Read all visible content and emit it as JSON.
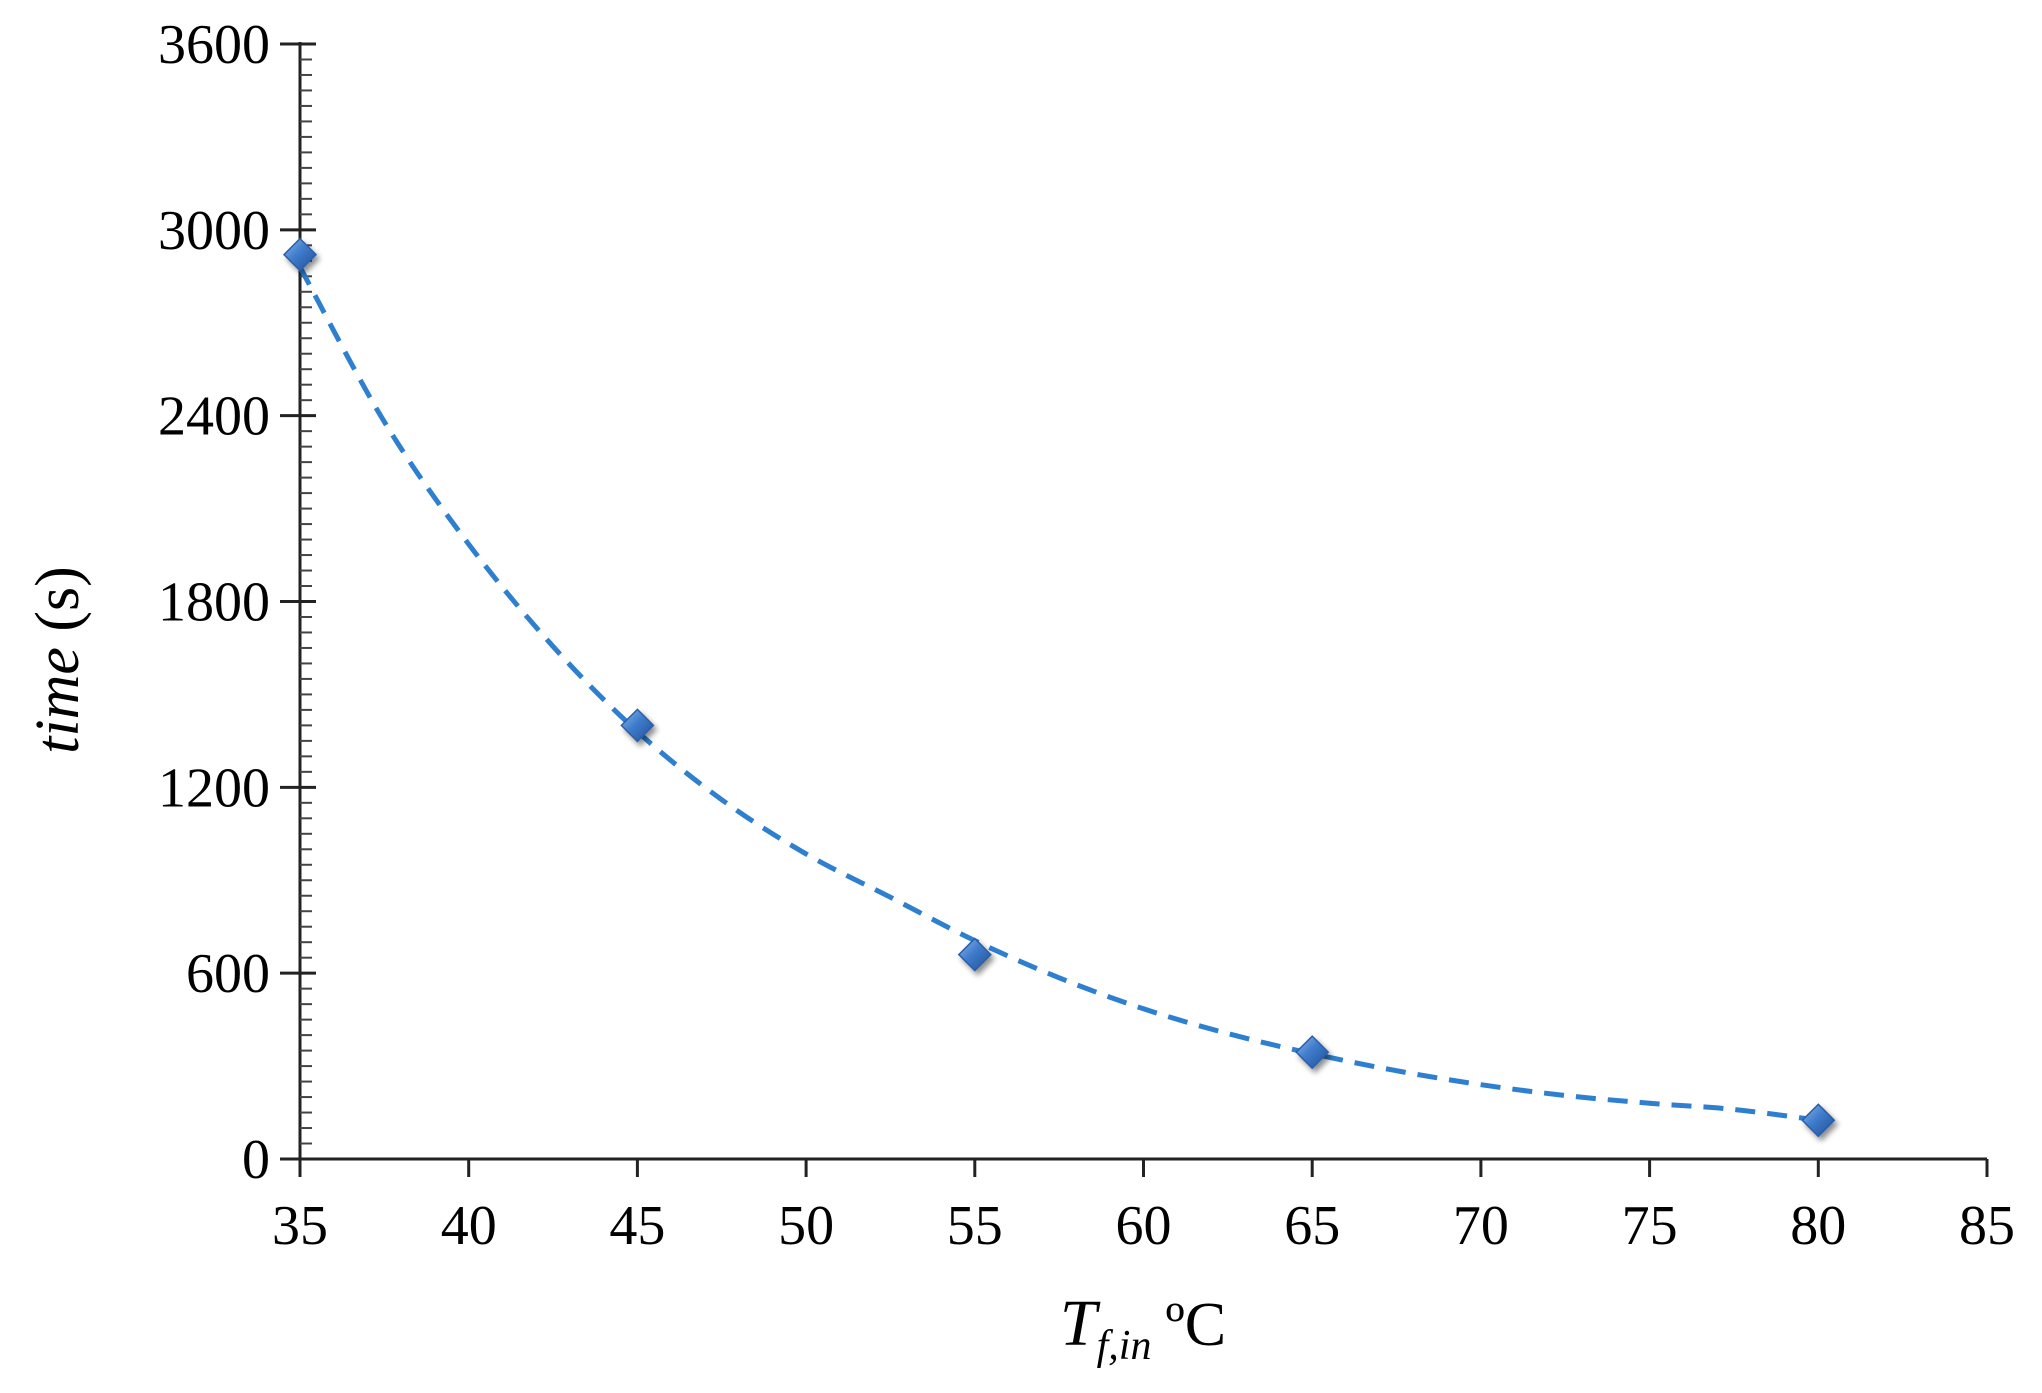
{
  "chart_data": {
    "type": "scatter",
    "title": "",
    "xlabel": {
      "main": "T",
      "subscript": "f,in",
      "unit": "ºC"
    },
    "ylabel": {
      "main": "time",
      "unit": "(s)"
    },
    "xlim": [
      35,
      85
    ],
    "ylim": [
      0,
      3600
    ],
    "xticks": [
      "35",
      "40",
      "45",
      "50",
      "55",
      "60",
      "65",
      "70",
      "75",
      "80",
      "85"
    ],
    "yticks": [
      "0",
      "600",
      "1200",
      "1800",
      "2400",
      "3000",
      "3600"
    ],
    "grid": false,
    "legend": "none",
    "series": [
      {
        "marker": "diamond",
        "color": "#3a78c9",
        "points": [
          {
            "x": 35,
            "y": 2920
          },
          {
            "x": 45,
            "y": 1400
          },
          {
            "x": 55,
            "y": 660
          },
          {
            "x": 65,
            "y": 345
          },
          {
            "x": 80,
            "y": 125
          }
        ]
      }
    ],
    "trendline": {
      "style": "dashed",
      "color": "#2f7fd0",
      "points": [
        {
          "x": 35,
          "y": 2880
        },
        {
          "x": 37.5,
          "y": 2380
        },
        {
          "x": 40,
          "y": 1985
        },
        {
          "x": 42.5,
          "y": 1655
        },
        {
          "x": 45,
          "y": 1380
        },
        {
          "x": 47.5,
          "y": 1160
        },
        {
          "x": 50,
          "y": 985
        },
        {
          "x": 52.5,
          "y": 845
        },
        {
          "x": 55,
          "y": 705
        },
        {
          "x": 57.5,
          "y": 585
        },
        {
          "x": 60,
          "y": 485
        },
        {
          "x": 62.5,
          "y": 405
        },
        {
          "x": 65,
          "y": 340
        },
        {
          "x": 67.5,
          "y": 285
        },
        {
          "x": 70,
          "y": 240
        },
        {
          "x": 72.5,
          "y": 205
        },
        {
          "x": 75,
          "y": 180
        },
        {
          "x": 77.5,
          "y": 160
        },
        {
          "x": 80,
          "y": 125
        }
      ]
    }
  }
}
